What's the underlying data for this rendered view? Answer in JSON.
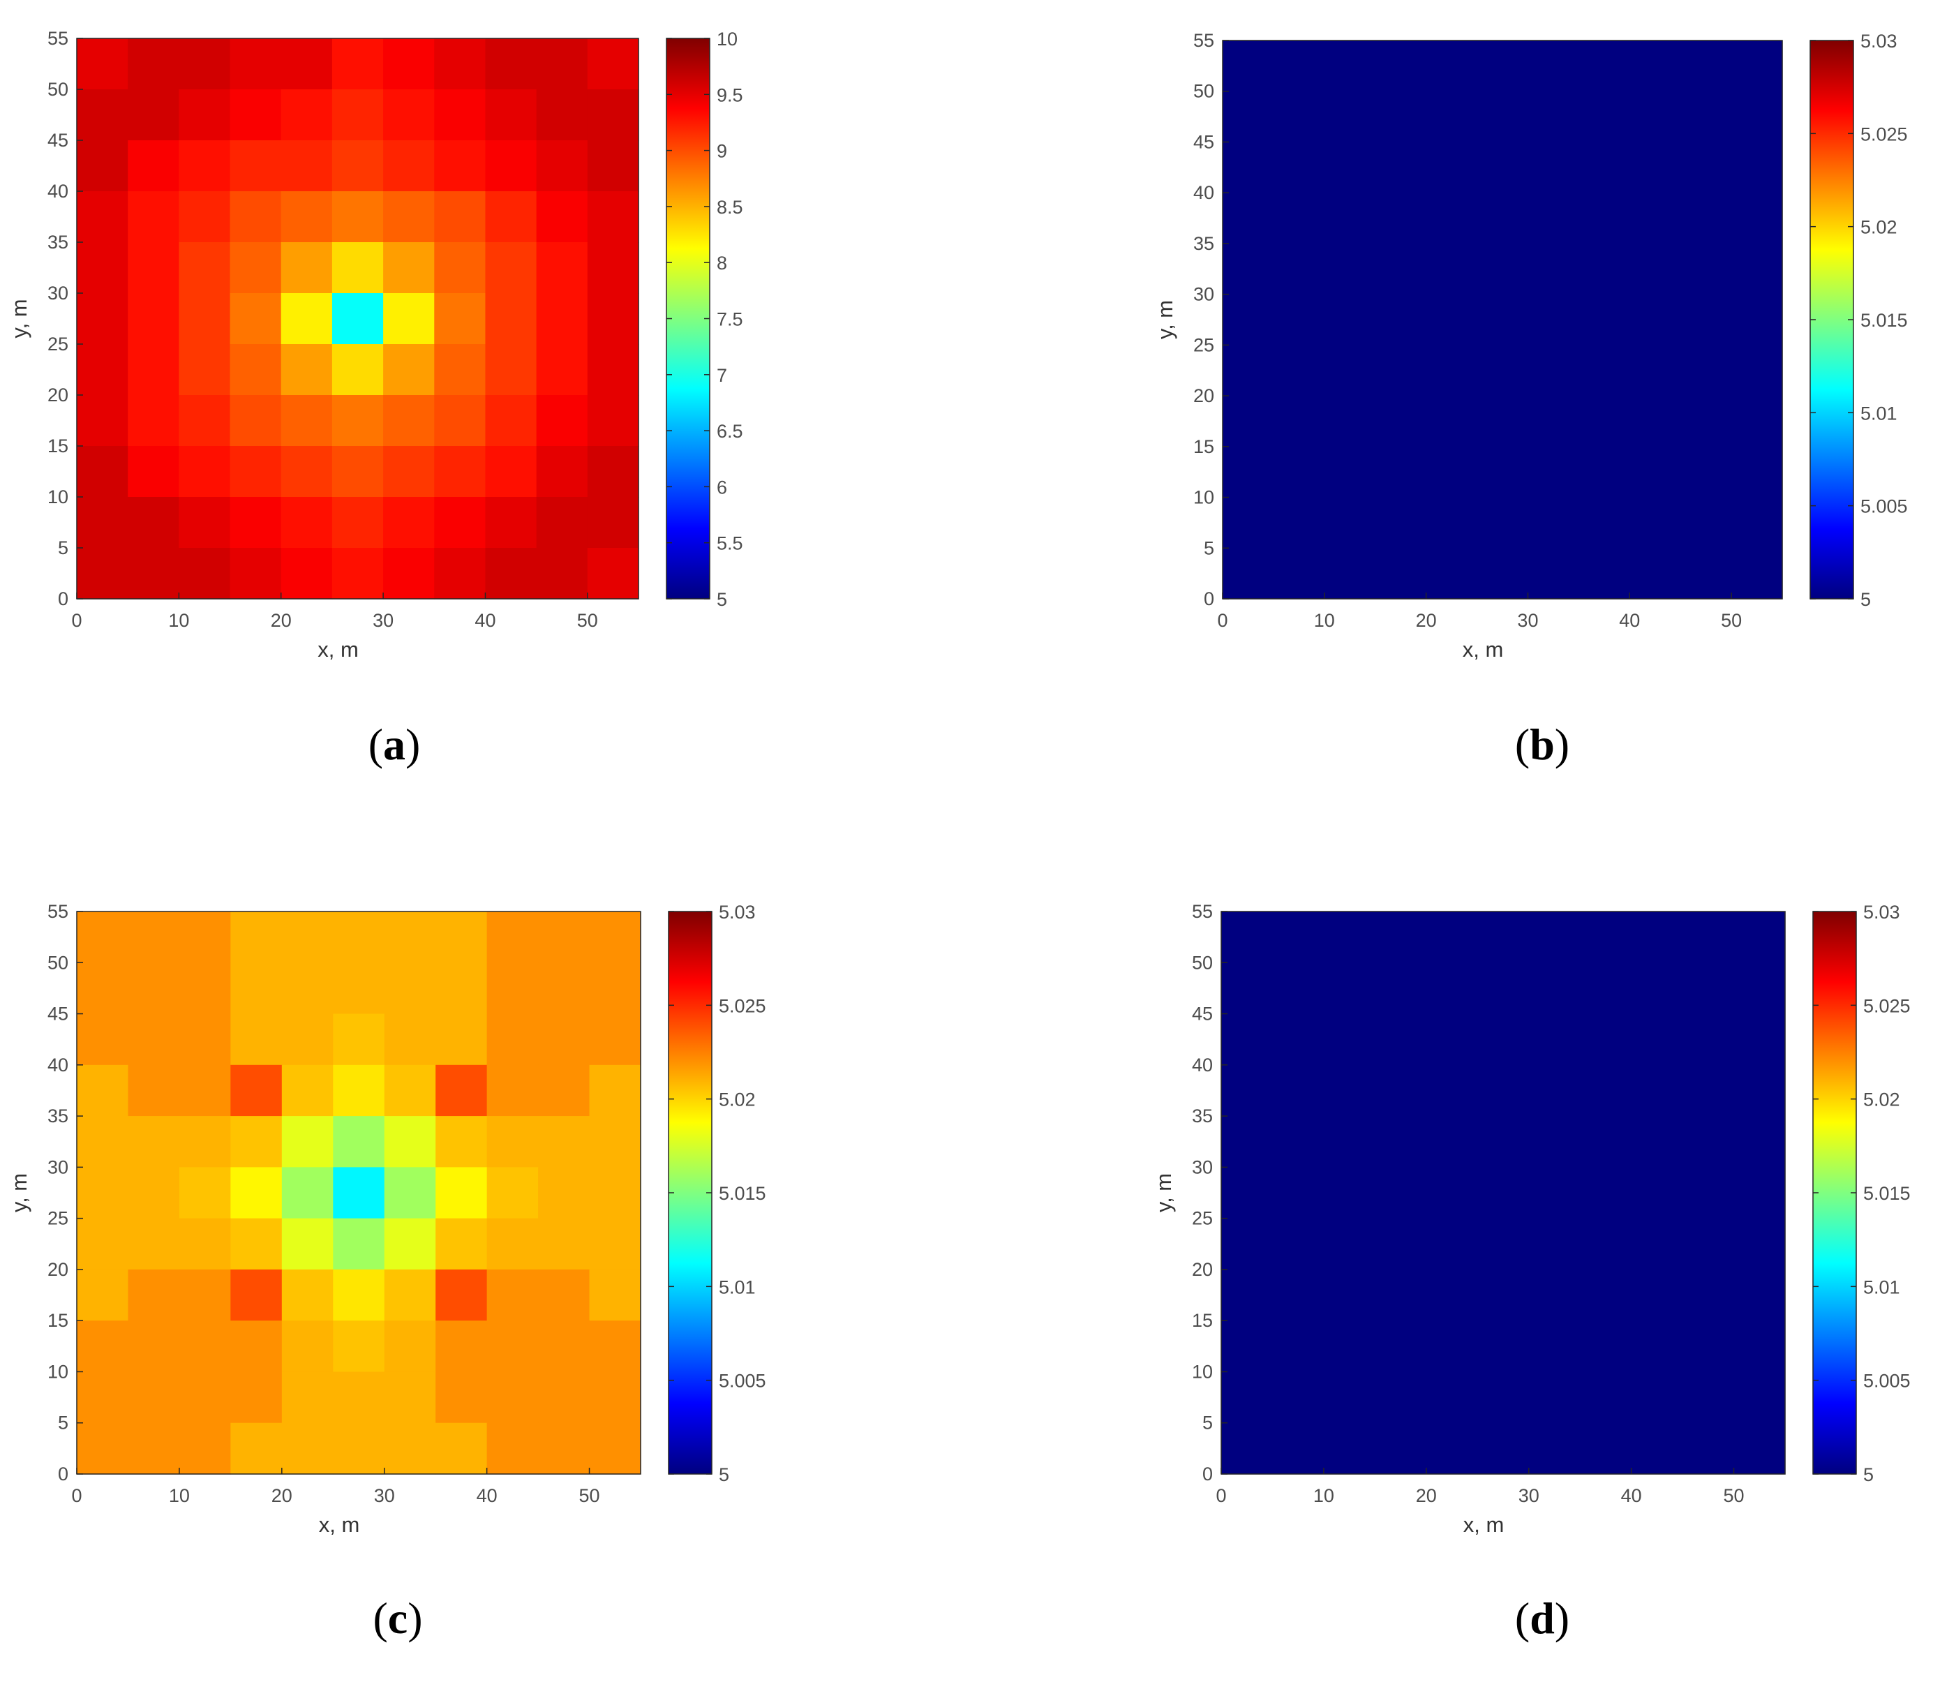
{
  "colormap": "jet",
  "chart_data": [
    {
      "panel_label": "a",
      "type": "heatmap",
      "xlabel": "x, m",
      "ylabel": "y, m",
      "xlim": [
        0,
        55
      ],
      "ylim": [
        0,
        55
      ],
      "x_ticks": [
        0,
        10,
        20,
        30,
        40,
        50
      ],
      "y_ticks": [
        0,
        5,
        10,
        15,
        20,
        25,
        30,
        35,
        40,
        45,
        50,
        55
      ],
      "cell_size": 5,
      "clim": [
        5,
        10
      ],
      "colorbar_ticks": [
        "5",
        "5.5",
        "6",
        "6.5",
        "7",
        "7.5",
        "8",
        "8.5",
        "9",
        "9.5",
        "10"
      ],
      "values": [
        [
          9.5,
          9.6,
          9.6,
          9.5,
          9.5,
          9.3,
          9.4,
          9.5,
          9.6,
          9.6,
          9.5
        ],
        [
          9.6,
          9.6,
          9.5,
          9.4,
          9.3,
          9.2,
          9.3,
          9.4,
          9.5,
          9.6,
          9.6
        ],
        [
          9.6,
          9.4,
          9.3,
          9.2,
          9.2,
          9.1,
          9.2,
          9.3,
          9.4,
          9.5,
          9.6
        ],
        [
          9.5,
          9.3,
          9.2,
          9.0,
          8.9,
          8.8,
          8.9,
          9.0,
          9.2,
          9.4,
          9.5
        ],
        [
          9.5,
          9.3,
          9.1,
          8.9,
          8.6,
          8.3,
          8.6,
          8.9,
          9.1,
          9.3,
          9.5
        ],
        [
          9.5,
          9.3,
          9.1,
          8.8,
          8.2,
          6.9,
          8.2,
          8.8,
          9.1,
          9.3,
          9.5
        ],
        [
          9.5,
          9.3,
          9.1,
          8.9,
          8.6,
          8.3,
          8.6,
          8.9,
          9.1,
          9.3,
          9.5
        ],
        [
          9.5,
          9.3,
          9.2,
          9.0,
          8.9,
          8.8,
          8.9,
          9.0,
          9.2,
          9.4,
          9.5
        ],
        [
          9.6,
          9.4,
          9.3,
          9.2,
          9.1,
          9.0,
          9.1,
          9.2,
          9.3,
          9.5,
          9.6
        ],
        [
          9.6,
          9.6,
          9.5,
          9.4,
          9.3,
          9.2,
          9.3,
          9.4,
          9.5,
          9.6,
          9.6
        ],
        [
          9.6,
          9.6,
          9.6,
          9.5,
          9.4,
          9.3,
          9.4,
          9.5,
          9.6,
          9.6,
          9.5
        ]
      ]
    },
    {
      "panel_label": "b",
      "type": "heatmap",
      "xlabel": "x, m",
      "ylabel": "y, m",
      "xlim": [
        0,
        55
      ],
      "ylim": [
        0,
        55
      ],
      "x_ticks": [
        0,
        10,
        20,
        30,
        40,
        50
      ],
      "y_ticks": [
        0,
        5,
        10,
        15,
        20,
        25,
        30,
        35,
        40,
        45,
        50,
        55
      ],
      "cell_size": 55,
      "clim": [
        5,
        5.03
      ],
      "colorbar_ticks": [
        "5",
        "5.005",
        "5.01",
        "5.015",
        "5.02",
        "5.025",
        "5.03"
      ],
      "values": [
        [
          5.0
        ]
      ]
    },
    {
      "panel_label": "c",
      "type": "heatmap",
      "xlabel": "x, m",
      "ylabel": "y, m",
      "xlim": [
        0,
        55
      ],
      "ylim": [
        0,
        55
      ],
      "x_ticks": [
        0,
        10,
        20,
        30,
        40,
        50
      ],
      "y_ticks": [
        0,
        5,
        10,
        15,
        20,
        25,
        30,
        35,
        40,
        45,
        50,
        55
      ],
      "cell_size": 5,
      "clim": [
        5,
        5.03
      ],
      "colorbar_ticks": [
        "5",
        "5.005",
        "5.01",
        "5.015",
        "5.02",
        "5.025",
        "5.03"
      ],
      "values": [
        [
          5.022,
          5.022,
          5.022,
          5.021,
          5.021,
          5.021,
          5.021,
          5.021,
          5.022,
          5.022,
          5.022
        ],
        [
          5.022,
          5.022,
          5.022,
          5.021,
          5.021,
          5.021,
          5.021,
          5.021,
          5.022,
          5.022,
          5.022
        ],
        [
          5.022,
          5.022,
          5.022,
          5.021,
          5.021,
          5.0205,
          5.021,
          5.021,
          5.022,
          5.022,
          5.022
        ],
        [
          5.021,
          5.022,
          5.022,
          5.024,
          5.0205,
          5.0195,
          5.0205,
          5.024,
          5.022,
          5.022,
          5.021
        ],
        [
          5.021,
          5.021,
          5.021,
          5.0205,
          5.018,
          5.016,
          5.018,
          5.0205,
          5.021,
          5.021,
          5.021
        ],
        [
          5.021,
          5.021,
          5.0205,
          5.019,
          5.016,
          5.011,
          5.016,
          5.019,
          5.0205,
          5.021,
          5.021
        ],
        [
          5.021,
          5.021,
          5.021,
          5.0205,
          5.018,
          5.016,
          5.018,
          5.0205,
          5.021,
          5.021,
          5.021
        ],
        [
          5.021,
          5.022,
          5.022,
          5.024,
          5.0205,
          5.0195,
          5.0205,
          5.024,
          5.022,
          5.022,
          5.021
        ],
        [
          5.022,
          5.022,
          5.022,
          5.022,
          5.021,
          5.0205,
          5.021,
          5.022,
          5.022,
          5.022,
          5.022
        ],
        [
          5.022,
          5.022,
          5.022,
          5.022,
          5.021,
          5.021,
          5.021,
          5.022,
          5.022,
          5.022,
          5.022
        ],
        [
          5.022,
          5.022,
          5.022,
          5.021,
          5.021,
          5.021,
          5.021,
          5.021,
          5.022,
          5.022,
          5.022
        ]
      ]
    },
    {
      "panel_label": "d",
      "type": "heatmap",
      "xlabel": "x, m",
      "ylabel": "y, m",
      "xlim": [
        0,
        55
      ],
      "ylim": [
        0,
        55
      ],
      "x_ticks": [
        0,
        10,
        20,
        30,
        40,
        50
      ],
      "y_ticks": [
        0,
        5,
        10,
        15,
        20,
        25,
        30,
        35,
        40,
        45,
        50,
        55
      ],
      "cell_size": 55,
      "clim": [
        5,
        5.03
      ],
      "colorbar_ticks": [
        "5",
        "5.005",
        "5.01",
        "5.015",
        "5.02",
        "5.025",
        "5.03"
      ],
      "values": [
        [
          5.0
        ]
      ]
    }
  ]
}
